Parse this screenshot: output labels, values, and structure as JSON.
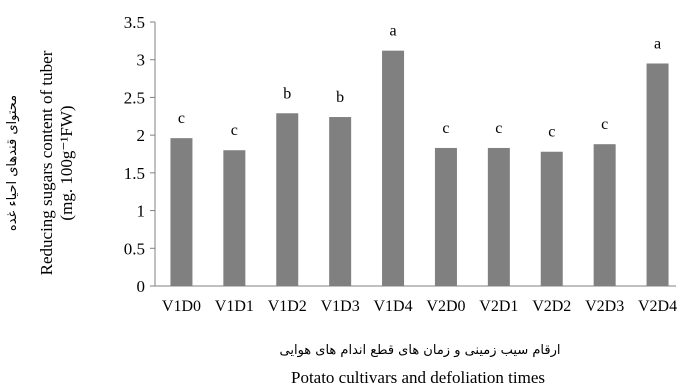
{
  "chart_data": {
    "type": "bar",
    "categories": [
      "V1D0",
      "V1D1",
      "V1D2",
      "V1D3",
      "V1D4",
      "V2D0",
      "V2D1",
      "V2D2",
      "V2D3",
      "V2D4"
    ],
    "values": [
      1.96,
      1.8,
      2.29,
      2.24,
      3.12,
      1.83,
      1.83,
      1.78,
      1.88,
      2.95
    ],
    "significance_letters": [
      "c",
      "c",
      "b",
      "b",
      "a",
      "c",
      "c",
      "c",
      "c",
      "a"
    ],
    "bar_color": "#808080",
    "ylim": [
      0,
      3.5
    ],
    "yticks": [
      "0",
      "0.5",
      "1",
      "1.5",
      "2",
      "2.5",
      "3",
      "3.5"
    ],
    "ylabel_lines": [
      "Reducing sugars content of tuber",
      "(mg. 100g⁻¹FW)"
    ],
    "ylabel_fa": "محتوای قندهای احیاء غده",
    "xlabel_fa": "ارقام سیب زمینی و زمان های قطع اندام های هوایی",
    "xlabel": "Potato cultivars and defoliation times",
    "grid": false,
    "legend": "none"
  }
}
